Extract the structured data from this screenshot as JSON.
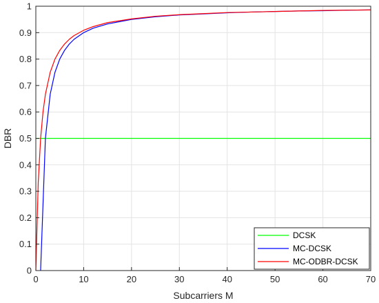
{
  "chart_data": {
    "type": "line",
    "title": "",
    "xlabel": "Subcarriers M",
    "ylabel": "DBR",
    "xlim": [
      0,
      70
    ],
    "ylim": [
      0,
      1
    ],
    "xticks": [
      0,
      10,
      20,
      30,
      40,
      50,
      60,
      70
    ],
    "yticks": [
      0,
      0.1,
      0.2,
      0.3,
      0.4,
      0.5,
      0.6,
      0.7,
      0.8,
      0.9,
      1
    ],
    "ytick_labels": [
      "0",
      "0.1",
      "0.2",
      "0.3",
      "0.4",
      "0.5",
      "0.6",
      "0.7",
      "0.8",
      "0.9",
      "1"
    ],
    "grid": true,
    "legend_position": "bottom-right",
    "series": [
      {
        "name": "DCSK",
        "color": "#00ff00",
        "x": [
          0,
          70
        ],
        "y": [
          0.5,
          0.5
        ]
      },
      {
        "name": "MC-DCSK",
        "color": "#0000ff",
        "x": [
          1,
          2,
          3,
          4,
          5,
          6,
          7,
          8,
          10,
          12,
          15,
          20,
          25,
          30,
          35,
          40,
          45,
          50,
          55,
          60,
          65,
          70
        ],
        "y": [
          0,
          0.5,
          0.667,
          0.75,
          0.8,
          0.833,
          0.857,
          0.875,
          0.9,
          0.917,
          0.933,
          0.95,
          0.96,
          0.967,
          0.971,
          0.975,
          0.978,
          0.98,
          0.982,
          0.983,
          0.985,
          0.986
        ]
      },
      {
        "name": "MC-ODBR-DCSK",
        "color": "#ff0000",
        "x": [
          0,
          0.5,
          1,
          1.5,
          2,
          3,
          4,
          5,
          6,
          7,
          8,
          10,
          12,
          15,
          20,
          25,
          30,
          35,
          40,
          45,
          50,
          55,
          60,
          65,
          70
        ],
        "y": [
          0,
          0.333,
          0.5,
          0.6,
          0.667,
          0.75,
          0.8,
          0.833,
          0.857,
          0.875,
          0.889,
          0.909,
          0.923,
          0.938,
          0.952,
          0.962,
          0.968,
          0.972,
          0.976,
          0.978,
          0.98,
          0.982,
          0.984,
          0.985,
          0.986
        ]
      }
    ]
  }
}
